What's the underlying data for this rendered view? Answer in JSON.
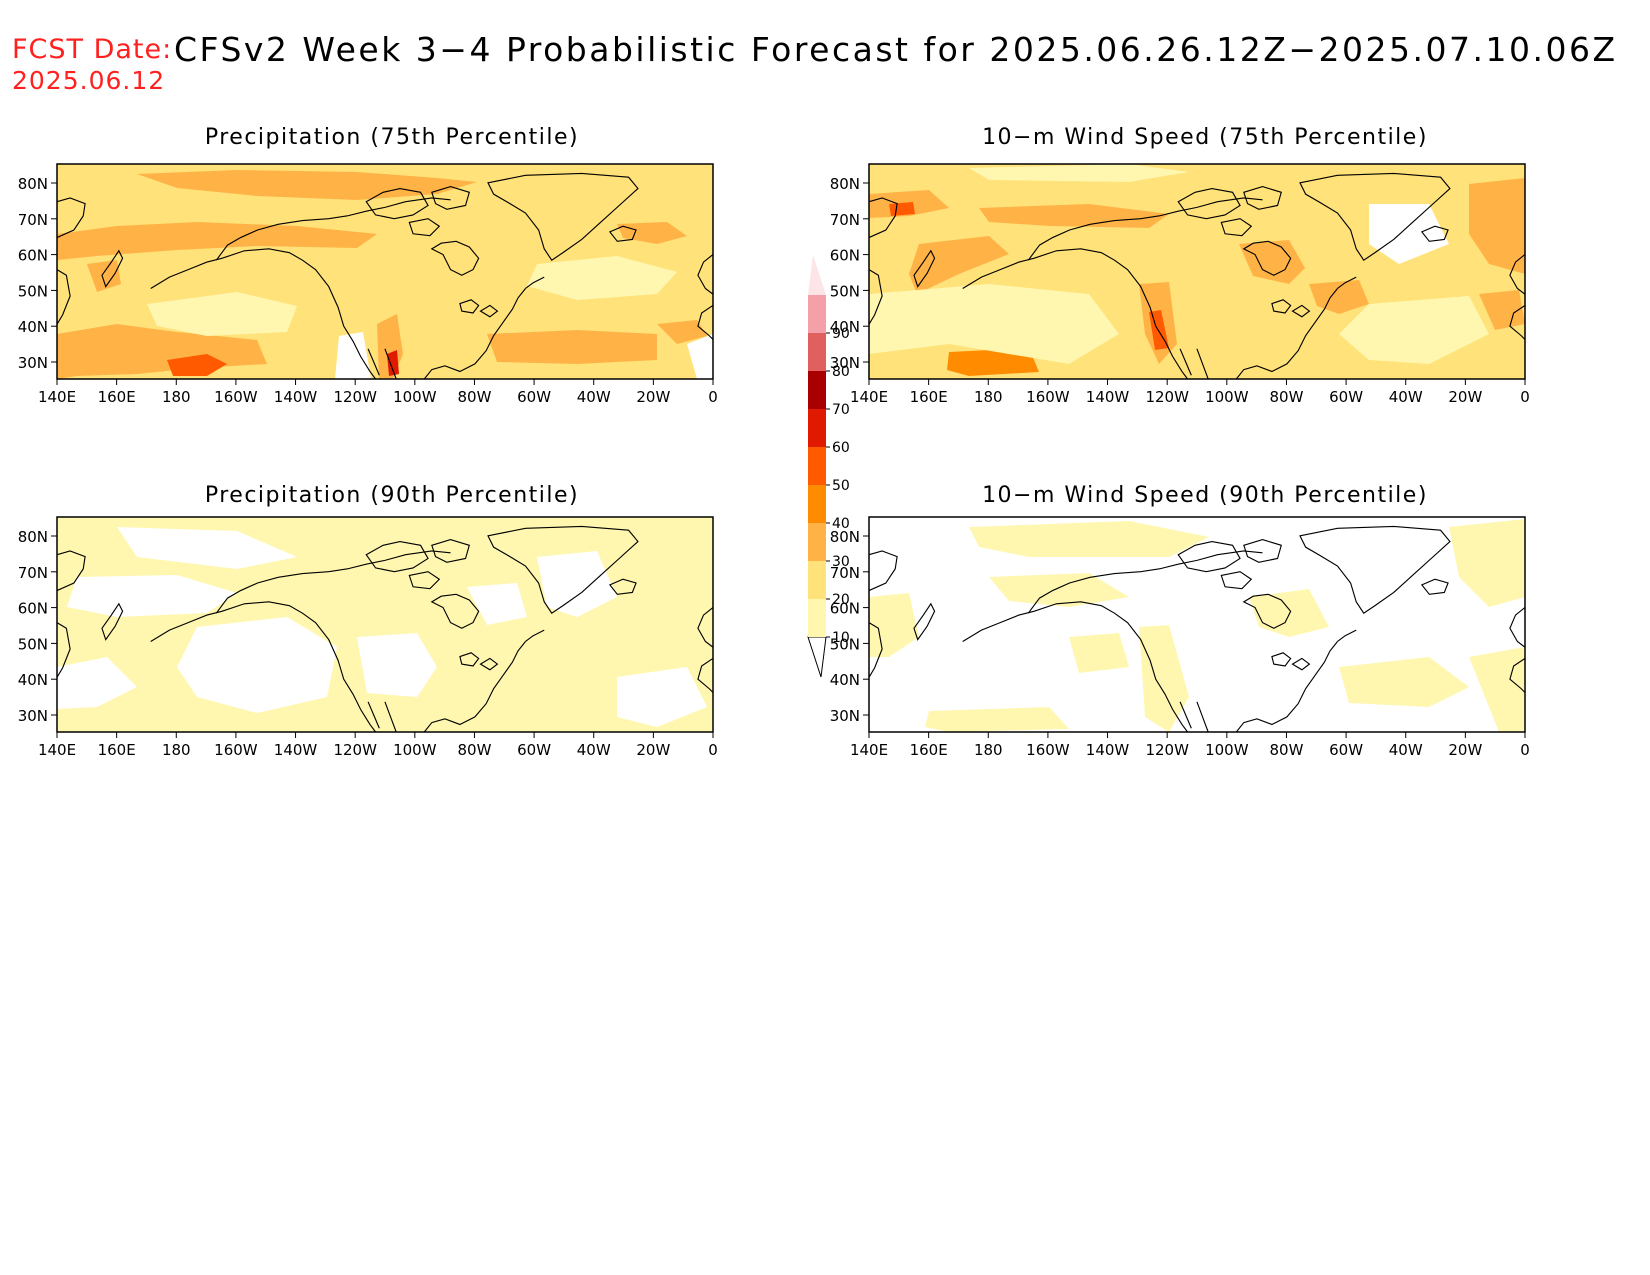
{
  "header": {
    "fcst_label": "FCST Date:",
    "fcst_date": "2025.06.12",
    "title": "CFSv2 Week 3−4 Probabilistic Forecast for 2025.06.26.12Z−2025.07.10.06Z"
  },
  "panels": [
    {
      "id": "precip-75",
      "title": "Precipitation (75th Percentile)"
    },
    {
      "id": "wind-75",
      "title": "10−m Wind Speed (75th Percentile)"
    },
    {
      "id": "precip-90",
      "title": "Precipitation (90th Percentile)"
    },
    {
      "id": "wind-90",
      "title": "10−m Wind Speed (90th Percentile)"
    }
  ],
  "axes": {
    "lon_labels": [
      "140E",
      "160E",
      "180",
      "160W",
      "140W",
      "120W",
      "100W",
      "80W",
      "60W",
      "40W",
      "20W",
      "0"
    ],
    "lat_labels": [
      "80N",
      "70N",
      "60N",
      "50N",
      "40N",
      "30N"
    ]
  },
  "colorbar": {
    "levels": [
      "10",
      "20",
      "30",
      "40",
      "50",
      "60",
      "70",
      "80",
      "90"
    ],
    "colors": [
      "#fff7b0",
      "#ffe27a",
      "#ffb347",
      "#ff8c00",
      "#ff5a00",
      "#e01a00",
      "#a80000",
      "#e06060",
      "#f4a0a8"
    ]
  }
}
